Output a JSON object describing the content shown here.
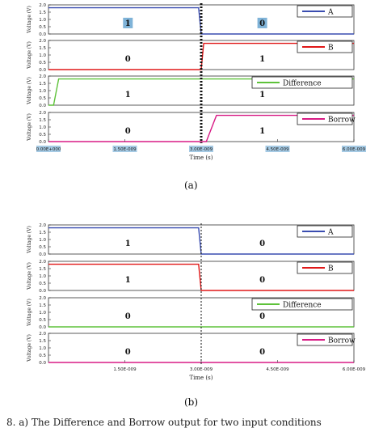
{
  "figure_labels": {
    "a": "(a)",
    "b": "(b)"
  },
  "caption_text": "8. a) The Difference and Borrow output for two input conditions",
  "colors": {
    "A": "#3a4db0",
    "B": "#e01818",
    "Difference": "#5ec23a",
    "Borrow": "#d81b85",
    "label_highlight": "#7fb3d8",
    "axis": "#333333"
  },
  "chart_data": [
    {
      "type": "line",
      "panel": "a",
      "xlabel": "Time (s)",
      "xlim": [
        0,
        6e-09
      ],
      "x_ticks": [
        "0.00E+000",
        "1.50E-009",
        "3.00E-009",
        "4.50E-009",
        "6.00E-009"
      ],
      "transition_x": 3e-09,
      "subplots": [
        {
          "series_name": "A",
          "ylabel": "Voltage (V)",
          "ylim": [
            0,
            2
          ],
          "y_ticks": [
            "0.0",
            "0.5",
            "1.0",
            "1.5",
            "2.0"
          ],
          "x": [
            0,
            2.95e-09,
            3e-09,
            6e-09
          ],
          "y": [
            1.8,
            1.8,
            0.0,
            0.0
          ],
          "logic_labels": [
            "1",
            "0"
          ]
        },
        {
          "series_name": "B",
          "ylabel": "Voltage (V)",
          "ylim": [
            0,
            2
          ],
          "y_ticks": [
            "0.0",
            "0.5",
            "1.0",
            "1.5",
            "2.0"
          ],
          "x": [
            0,
            3e-09,
            3.05e-09,
            6e-09
          ],
          "y": [
            0.0,
            0.0,
            1.8,
            1.8
          ],
          "logic_labels": [
            "0",
            "1"
          ]
        },
        {
          "series_name": "Difference",
          "ylabel": "Voltage (V)",
          "ylim": [
            0,
            2
          ],
          "y_ticks": [
            "0.0",
            "0.5",
            "1.0",
            "1.5",
            "2.0"
          ],
          "x": [
            0,
            1e-10,
            2e-10,
            6e-09
          ],
          "y": [
            0.0,
            0.0,
            1.8,
            1.8
          ],
          "logic_labels": [
            "1",
            "1"
          ]
        },
        {
          "series_name": "Borrow",
          "ylabel": "Voltage (V)",
          "ylim": [
            0,
            2
          ],
          "y_ticks": [
            "0.0",
            "0.5",
            "1.0",
            "1.5",
            "2.0"
          ],
          "x": [
            0,
            3.1e-09,
            3.3e-09,
            6e-09
          ],
          "y": [
            0.0,
            0.0,
            1.8,
            1.8
          ],
          "logic_labels": [
            "0",
            "1"
          ]
        }
      ]
    },
    {
      "type": "line",
      "panel": "b",
      "xlabel": "Time (s)",
      "xlim": [
        0,
        6e-09
      ],
      "x_ticks": [
        "1.50E-009",
        "3.00E-009",
        "4.50E-009",
        "6.00E-009"
      ],
      "transition_x": 3e-09,
      "subplots": [
        {
          "series_name": "A",
          "ylabel": "Voltage (V)",
          "ylim": [
            0,
            2
          ],
          "y_ticks": [
            "0.0",
            "0.5",
            "1.0",
            "1.5",
            "2.0"
          ],
          "x": [
            0,
            2.95e-09,
            3e-09,
            6e-09
          ],
          "y": [
            1.8,
            1.8,
            0.0,
            0.0
          ],
          "logic_labels": [
            "1",
            "0"
          ]
        },
        {
          "series_name": "B",
          "ylabel": "Voltage (V)",
          "ylim": [
            0,
            2
          ],
          "y_ticks": [
            "0.0",
            "0.5",
            "1.0",
            "1.5",
            "2.0"
          ],
          "x": [
            0,
            2.95e-09,
            3e-09,
            6e-09
          ],
          "y": [
            1.8,
            1.8,
            0.0,
            0.0
          ],
          "logic_labels": [
            "1",
            "0"
          ]
        },
        {
          "series_name": "Difference",
          "ylabel": "Voltage (V)",
          "ylim": [
            0,
            2
          ],
          "y_ticks": [
            "0.0",
            "0.5",
            "1.0",
            "1.5",
            "2.0"
          ],
          "x": [
            0,
            6e-09
          ],
          "y": [
            0.0,
            0.0
          ],
          "logic_labels": [
            "0",
            "0"
          ]
        },
        {
          "series_name": "Borrow",
          "ylabel": "Voltage (V)",
          "ylim": [
            0,
            2
          ],
          "y_ticks": [
            "0.0",
            "0.5",
            "1.0",
            "1.5",
            "2.0"
          ],
          "x": [
            0,
            6e-09
          ],
          "y": [
            0.0,
            0.0
          ],
          "logic_labels": [
            "0",
            "0"
          ]
        }
      ]
    }
  ]
}
